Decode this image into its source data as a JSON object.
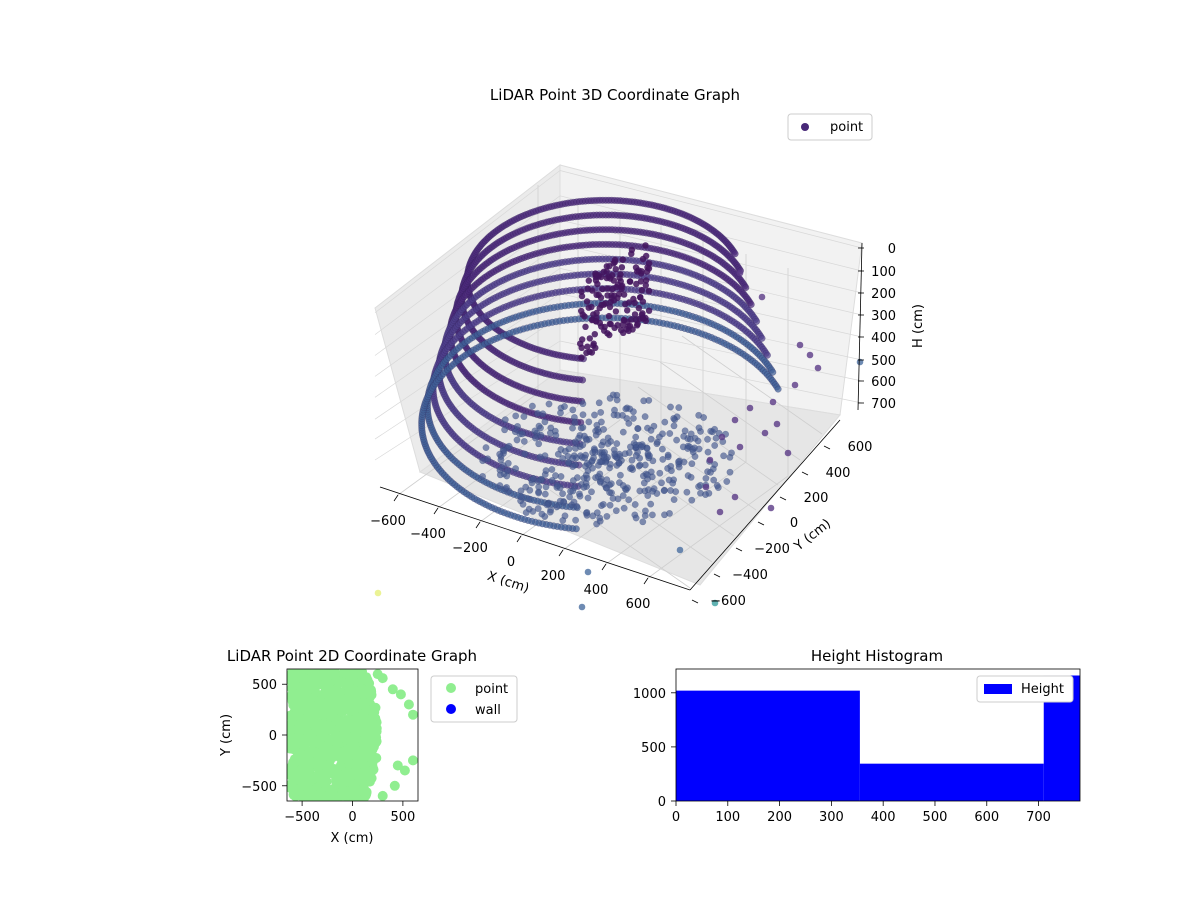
{
  "chart_data": [
    {
      "type": "scatter3d",
      "title": "LiDAR Point 3D Coordinate Graph",
      "xlabel": "X (cm)",
      "ylabel": "Y (cm)",
      "zlabel": "H (cm)",
      "xlim": [
        -650,
        650
      ],
      "ylim": [
        -650,
        650
      ],
      "zlim": [
        750,
        0
      ],
      "xticks": [
        "−600",
        "−400",
        "−200",
        "0",
        "200",
        "400",
        "600"
      ],
      "yticks": [
        "−600",
        "−400",
        "−200",
        "0",
        "200",
        "400",
        "600"
      ],
      "zticks": [
        "0",
        "100",
        "200",
        "300",
        "400",
        "500",
        "600",
        "700"
      ],
      "legend": [
        "point"
      ],
      "legend_position": "top-right",
      "grid": true,
      "colormap": "viridis",
      "marker_color": "#482878",
      "description_points": "Dense cylindrical wall of points around the sensor plus a dense floor cone near the origin"
    },
    {
      "type": "scatter",
      "title": "LiDAR Point 2D Coordinate Graph",
      "xlabel": "X (cm)",
      "ylabel": "Y (cm)",
      "xlim": [
        -650,
        650
      ],
      "ylim": [
        -650,
        650
      ],
      "xticks": [
        "−500",
        "0",
        "500"
      ],
      "yticks": [
        "500",
        "0",
        "−500"
      ],
      "legend": [
        "point",
        "wall"
      ],
      "legend_position": "outside-right",
      "series_colors": [
        "#90ee90",
        "#0000ff"
      ]
    },
    {
      "type": "bar",
      "title": "Height Histogram",
      "xlim": [
        0,
        780
      ],
      "ylim": [
        0,
        1220
      ],
      "xticks": [
        "0",
        "100",
        "200",
        "300",
        "400",
        "500",
        "600",
        "700"
      ],
      "yticks": [
        "0",
        "500",
        "1000"
      ],
      "bins": [
        {
          "x0": 0,
          "x1": 355,
          "value": 1020
        },
        {
          "x0": 355,
          "x1": 710,
          "value": 345
        },
        {
          "x0": 710,
          "x1": 780,
          "value": 1160
        }
      ],
      "legend": [
        "Height"
      ],
      "legend_position": "top-right",
      "bar_color": "#0000ff"
    }
  ]
}
